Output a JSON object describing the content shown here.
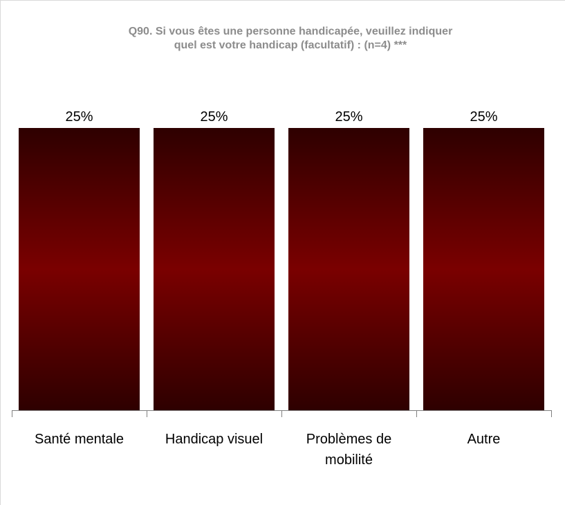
{
  "chart_data": {
    "type": "bar",
    "title_lines": [
      "Q90. Si vous êtes une personne handicapée, veuillez indiquer",
      "quel est votre handicap (facultatif) : (n=4) ***"
    ],
    "categories": [
      [
        "Santé mentale"
      ],
      [
        "Handicap visuel"
      ],
      [
        "Problèmes de",
        "mobilité"
      ],
      [
        "Autre"
      ]
    ],
    "values": [
      25,
      25,
      25,
      25
    ],
    "value_labels": [
      "25%",
      "25%",
      "25%",
      "25%"
    ],
    "ylim": [
      0,
      25
    ],
    "grid": false,
    "legend": "none",
    "bar_colors": {
      "edge": "#2e0000",
      "mid": "#7a0000"
    },
    "axis_color": "#7f7f7f"
  }
}
